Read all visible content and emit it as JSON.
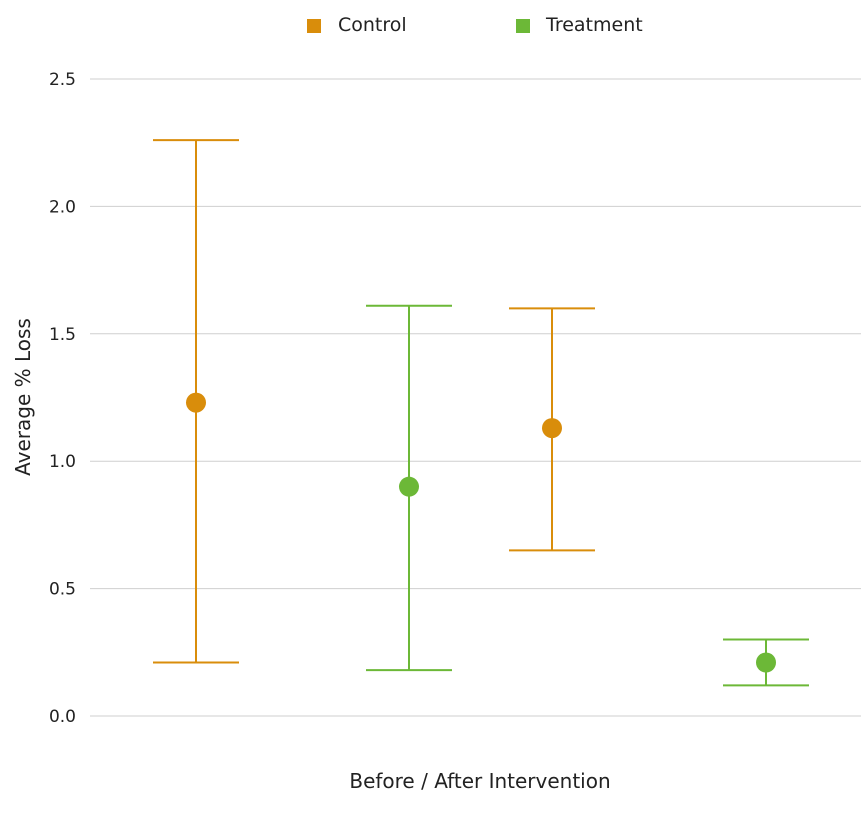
{
  "chart_data": {
    "type": "scatter",
    "title": "",
    "xlabel": "Before / After Intervention",
    "ylabel": "Average % Loss",
    "ylim": [
      0,
      2.5
    ],
    "yticks": [
      "0.0",
      "0.5",
      "1.0",
      "1.5",
      "2.0",
      "2.5"
    ],
    "grid": true,
    "legend_position": "top-center",
    "series": [
      {
        "name": "Control",
        "color": "#d98d0b"
      },
      {
        "name": "Treatment",
        "color": "#6cb837"
      }
    ],
    "points": [
      {
        "series": "Control",
        "x": 1,
        "y": 1.23,
        "low": 0.21,
        "high": 2.26
      },
      {
        "series": "Treatment",
        "x": 2,
        "y": 0.9,
        "low": 0.18,
        "high": 1.61
      },
      {
        "series": "Control",
        "x": 3,
        "y": 1.13,
        "low": 0.65,
        "high": 1.6
      },
      {
        "series": "Treatment",
        "x": 4,
        "y": 0.21,
        "low": 0.12,
        "high": 0.3
      }
    ]
  }
}
